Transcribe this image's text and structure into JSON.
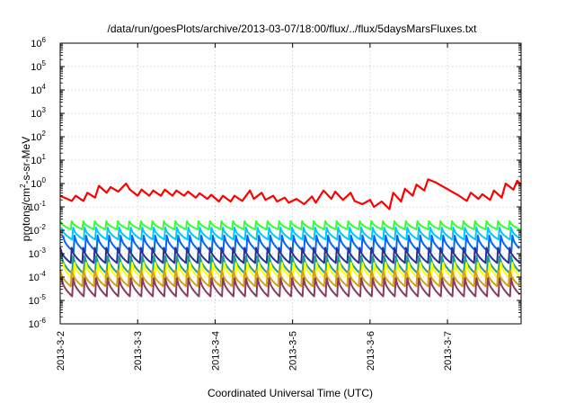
{
  "chart_data": {
    "type": "line",
    "title": "/data/run/goesPlots/archive/2013-03-07/18:00/flux/../flux/5daysMarsFluxes.txt",
    "xlabel": "Coordinated Universal Time (UTC)",
    "ylabel": "protons/cm²-s-sr-MeV",
    "ylabel_parts": [
      "protons/cm",
      "2",
      "-s-sr-MeV"
    ],
    "yscale": "log",
    "ylim": [
      1e-06,
      1000000.0
    ],
    "xlim_days": [
      0,
      5.95
    ],
    "grid": true,
    "legend": "none",
    "x_ticks": [
      {
        "label": "2013-3-2",
        "day": 0
      },
      {
        "label": "2013-3-3",
        "day": 1
      },
      {
        "label": "2013-3-4",
        "day": 2
      },
      {
        "label": "2013-3-5",
        "day": 3
      },
      {
        "label": "2013-3-6",
        "day": 4
      },
      {
        "label": "2013-3-7",
        "day": 5
      }
    ],
    "y_ticks": [
      {
        "base": "10",
        "exp": "-6",
        "exponent": -6
      },
      {
        "base": "10",
        "exp": "-5",
        "exponent": -5
      },
      {
        "base": "10",
        "exp": "-4",
        "exponent": -4
      },
      {
        "base": "10",
        "exp": "-3",
        "exponent": -3
      },
      {
        "base": "10",
        "exp": "-2",
        "exponent": -2
      },
      {
        "base": "10",
        "exp": "-1",
        "exponent": -1
      },
      {
        "base": "10",
        "exp": "0",
        "exponent": 0
      },
      {
        "base": "10",
        "exp": "1",
        "exponent": 1
      },
      {
        "base": "10",
        "exp": "2",
        "exponent": 2
      },
      {
        "base": "10",
        "exp": "3",
        "exponent": 3
      },
      {
        "base": "10",
        "exp": "4",
        "exponent": 4
      },
      {
        "base": "10",
        "exp": "5",
        "exponent": 5
      },
      {
        "base": "10",
        "exp": "6",
        "exponent": 6
      }
    ],
    "series": [
      {
        "color": "#ff0000",
        "style": "irregular",
        "x": [
          0,
          0.15,
          0.2,
          0.3,
          0.35,
          0.45,
          0.5,
          0.6,
          0.65,
          0.75,
          0.85,
          0.9,
          1.0,
          1.05,
          1.15,
          1.2,
          1.3,
          1.35,
          1.45,
          1.5,
          1.6,
          1.65,
          1.75,
          1.8,
          1.9,
          1.95,
          2.05,
          2.1,
          2.2,
          2.25,
          2.35,
          2.45,
          2.5,
          2.6,
          2.65,
          2.75,
          2.8,
          2.9,
          2.95,
          3.05,
          3.15,
          3.25,
          3.3,
          3.4,
          3.5,
          3.55,
          3.65,
          3.75,
          3.8,
          3.9,
          4.0,
          4.05,
          4.15,
          4.25,
          4.3,
          4.4,
          4.45,
          4.55,
          4.6,
          4.7,
          4.75,
          4.85,
          5.15,
          5.25,
          5.3,
          5.4,
          5.45,
          5.55,
          5.6,
          5.7,
          5.75,
          5.85,
          5.9,
          5.95
        ],
        "y": [
          0.3,
          0.18,
          0.3,
          0.18,
          0.4,
          0.25,
          0.8,
          0.4,
          0.7,
          0.45,
          1.0,
          0.55,
          0.3,
          0.55,
          0.3,
          0.5,
          0.3,
          0.55,
          0.3,
          0.5,
          0.3,
          0.45,
          0.25,
          0.38,
          0.22,
          0.33,
          0.17,
          0.3,
          0.17,
          0.3,
          0.18,
          0.5,
          0.22,
          0.4,
          0.2,
          0.3,
          0.17,
          0.25,
          0.15,
          0.22,
          0.13,
          0.28,
          0.15,
          0.5,
          0.22,
          0.45,
          0.2,
          0.4,
          0.18,
          0.13,
          0.2,
          0.1,
          0.17,
          0.08,
          0.4,
          0.17,
          0.6,
          0.3,
          0.9,
          0.5,
          1.5,
          1.1,
          0.3,
          0.18,
          0.4,
          0.22,
          0.35,
          0.2,
          0.5,
          0.25,
          1.0,
          0.55,
          1.3,
          0.9
        ]
      },
      {
        "color": "#33ff33",
        "style": "sawtooth",
        "cycles": 40,
        "max": 0.025,
        "min": 0.011
      },
      {
        "color": "#00c8ff",
        "style": "sawtooth",
        "cycles": 40,
        "max": 0.013,
        "min": 0.004
      },
      {
        "color": "#0066ff",
        "style": "sawtooth",
        "cycles": 40,
        "max": 0.006,
        "min": 0.0012
      },
      {
        "color": "#2e3192",
        "style": "sawtooth",
        "cycles": 40,
        "max": 0.0018,
        "min": 0.0004
      },
      {
        "color": "#1a9e8f",
        "style": "sawtooth",
        "cycles": 40,
        "max": 0.0008,
        "min": 0.00014
      },
      {
        "color": "#ffff00",
        "style": "sawtooth",
        "cycles": 40,
        "max": 0.0004,
        "min": 8e-05
      },
      {
        "color": "#d4a017",
        "style": "sawtooth",
        "cycles": 40,
        "max": 0.0002,
        "min": 4e-05
      },
      {
        "color": "#8b3a62",
        "style": "sawtooth",
        "cycles": 40,
        "max": 9e-05,
        "min": 1.5e-05
      }
    ]
  }
}
